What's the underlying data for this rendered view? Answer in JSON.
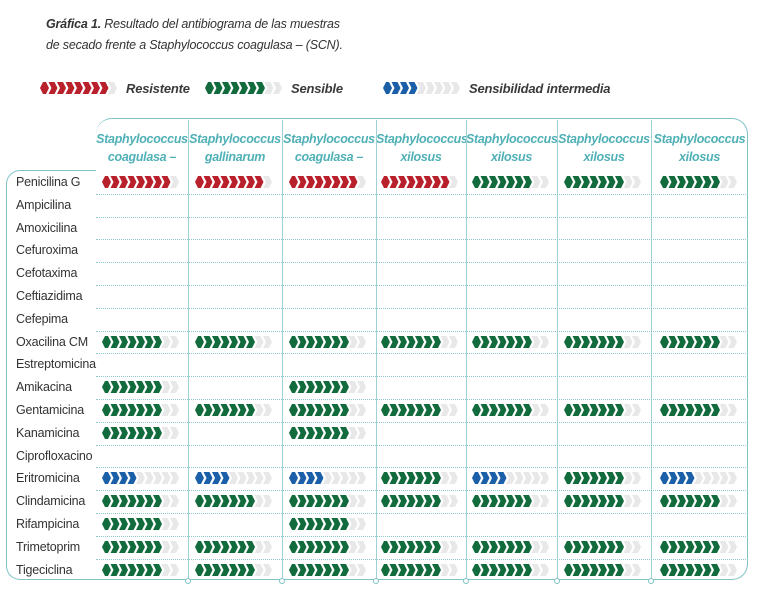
{
  "caption": {
    "label": "Gráfica 1.",
    "line1": "Resultado del antibiograma de las muestras",
    "line2": "de secado frente a Staphylococcus coagulasa – (SCN)."
  },
  "legend": [
    {
      "key": "R",
      "label": "Resistente"
    },
    {
      "key": "S",
      "label": "Sensible"
    },
    {
      "key": "I",
      "label": "Sensibilidad intermedia"
    }
  ],
  "colors": {
    "R": "#b8212b",
    "S": "#116b3c",
    "I": "#1a5fa8",
    "empty": "#e8e8e8",
    "accent": "#4fb0b6"
  },
  "columns": [
    {
      "genus": "Staphylococcus",
      "species": "coagulasa –"
    },
    {
      "genus": "Staphylococcus",
      "species": "gallinarum"
    },
    {
      "genus": "Staphylococcus",
      "species": "coagulasa –"
    },
    {
      "genus": "Staphylococcus",
      "species": "xilosus"
    },
    {
      "genus": "Staphylococcus",
      "species": "xilosus"
    },
    {
      "genus": "Staphylococcus",
      "species": "xilosus"
    },
    {
      "genus": "Staphylococcus",
      "species": "xilosus"
    }
  ],
  "rows": [
    {
      "name": "Penicilina G",
      "values": [
        "R",
        "R",
        "R",
        "R",
        "S",
        "S",
        "S"
      ]
    },
    {
      "name": "Ampicilina",
      "values": [
        "",
        "",
        "",
        "",
        "",
        "",
        ""
      ]
    },
    {
      "name": "Amoxicilina",
      "values": [
        "",
        "",
        "",
        "",
        "",
        "",
        ""
      ]
    },
    {
      "name": "Cefuroxima",
      "values": [
        "",
        "",
        "",
        "",
        "",
        "",
        ""
      ]
    },
    {
      "name": "Cefotaxima",
      "values": [
        "",
        "",
        "",
        "",
        "",
        "",
        ""
      ]
    },
    {
      "name": "Ceftiazidima",
      "values": [
        "",
        "",
        "",
        "",
        "",
        "",
        ""
      ]
    },
    {
      "name": "Cefepima",
      "values": [
        "",
        "",
        "",
        "",
        "",
        "",
        ""
      ]
    },
    {
      "name": "Oxacilina CM",
      "values": [
        "S",
        "S",
        "S",
        "S",
        "S",
        "S",
        "S"
      ]
    },
    {
      "name": "Estreptomicina",
      "values": [
        "",
        "",
        "",
        "",
        "",
        "",
        ""
      ]
    },
    {
      "name": "Amikacina",
      "values": [
        "S",
        "",
        "S",
        "",
        "",
        "",
        ""
      ]
    },
    {
      "name": "Gentamicina",
      "values": [
        "S",
        "S",
        "S",
        "S",
        "S",
        "S",
        "S"
      ]
    },
    {
      "name": "Kanamicina",
      "values": [
        "S",
        "",
        "S",
        "",
        "",
        "",
        ""
      ]
    },
    {
      "name": "Ciprofloxacino",
      "values": [
        "",
        "",
        "",
        "",
        "",
        "",
        ""
      ]
    },
    {
      "name": "Eritromicina",
      "values": [
        "I",
        "I",
        "I",
        "S",
        "I",
        "S",
        "I"
      ]
    },
    {
      "name": "Clindamicina",
      "values": [
        "S",
        "S",
        "S",
        "S",
        "S",
        "S",
        "S"
      ]
    },
    {
      "name": "Rifampicina",
      "values": [
        "S",
        "",
        "S",
        "",
        "",
        "",
        ""
      ]
    },
    {
      "name": "Trimetoprim",
      "values": [
        "S",
        "S",
        "S",
        "S",
        "S",
        "S",
        "S"
      ]
    },
    {
      "name": "Tigeciclina",
      "values": [
        "S",
        "S",
        "S",
        "S",
        "S",
        "S",
        "S"
      ]
    }
  ]
}
